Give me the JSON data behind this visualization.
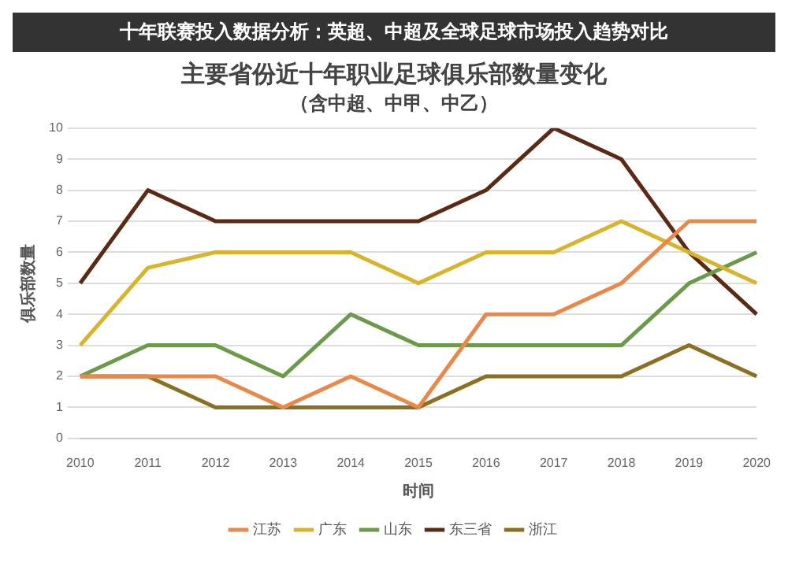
{
  "chart_data": {
    "type": "line",
    "title": "主要省份近十年职业足球俱乐部数量变化",
    "subtitle": "（含中超、中甲、中乙）",
    "xlabel": "时间",
    "ylabel": "俱乐部数量",
    "annotations": [
      "十年联赛投入数据分析：英超、中超及全球足球市场投入趋势对比"
    ],
    "categories": [
      "2010",
      "2011",
      "2012",
      "2013",
      "2014",
      "2015",
      "2016",
      "2017",
      "2018",
      "2019",
      "2020"
    ],
    "series": [
      {
        "name": "江苏",
        "color": "#e8894a",
        "values": [
          2,
          2,
          2,
          1,
          2,
          1,
          4,
          4,
          5,
          7,
          7
        ]
      },
      {
        "name": "广东",
        "color": "#d9b42a",
        "values": [
          3,
          5.5,
          6,
          6,
          6,
          5,
          6,
          6,
          7,
          6,
          5
        ]
      },
      {
        "name": "山东",
        "color": "#6a9a4a",
        "values": [
          2,
          3,
          3,
          2,
          4,
          3,
          3,
          3,
          3,
          5,
          6
        ]
      },
      {
        "name": "东三省",
        "color": "#5a2a14",
        "values": [
          5,
          8,
          7,
          7,
          7,
          7,
          8,
          10,
          9,
          6,
          4
        ]
      },
      {
        "name": "浙江",
        "color": "#8a7020",
        "values": [
          2,
          2,
          1,
          1,
          1,
          1,
          2,
          2,
          2,
          3,
          2
        ]
      }
    ],
    "ylim": [
      0,
      10
    ],
    "yticks": [
      0,
      1,
      2,
      3,
      4,
      5,
      6,
      7,
      8,
      9,
      10
    ],
    "grid": "y",
    "legend": "bottom",
    "marker": "none",
    "line_style": "solid"
  }
}
